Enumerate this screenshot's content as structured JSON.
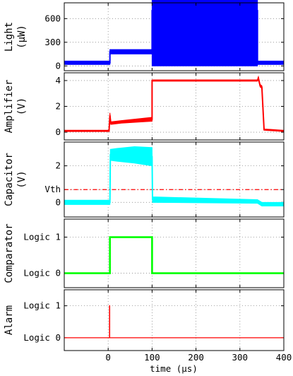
{
  "chart_data": {
    "type": "line",
    "x_range": [
      -100,
      400
    ],
    "x_ticks": [
      "0",
      "100",
      "200",
      "300",
      "400"
    ],
    "x_tick_values": [
      0,
      100,
      200,
      300,
      400
    ],
    "xlabel": "time (µs)",
    "grid": true,
    "panels": [
      {
        "name": "light",
        "ylabel_lines": [
          "Light",
          "(µW)"
        ],
        "ylim": [
          -60,
          800
        ],
        "y_ticks": [
          {
            "label": "600",
            "value": 600
          },
          {
            "label": "300",
            "value": 300
          },
          {
            "label": "0",
            "value": 0
          }
        ],
        "color": "#0000ff",
        "series": [
          {
            "x": [
              -100,
              4,
              4,
              100,
              100,
              340,
              340,
              400
            ],
            "y": [
              40,
              40,
              180,
              180,
              700,
              700,
              40,
              40
            ],
            "band": [
              22,
              22,
              28,
              28,
              700,
              700,
              22,
              22
            ]
          }
        ]
      },
      {
        "name": "amplifier",
        "ylabel_lines": [
          "Amplifier",
          "(V)"
        ],
        "ylim": [
          -0.6,
          4.6
        ],
        "y_ticks": [
          {
            "label": "4",
            "value": 4
          },
          {
            "label": "2",
            "value": 2
          },
          {
            "label": "0",
            "value": 0
          }
        ],
        "color": "#ff0000",
        "series": [
          {
            "x": [
              -100,
              2,
              4,
              6,
              30,
              100,
              100,
              340,
              342,
              346,
              350,
              355,
              400
            ],
            "y": [
              0.1,
              0.1,
              1.3,
              0.7,
              0.8,
              1.0,
              4.0,
              4.0,
              4.2,
              3.6,
              3.5,
              0.2,
              0.1
            ],
            "band": [
              0.05,
              0.05,
              0.2,
              0.1,
              0.1,
              0.15,
              0.05,
              0.05,
              0.1,
              0.1,
              0.1,
              0.05,
              0.05
            ]
          }
        ]
      },
      {
        "name": "capacitor",
        "ylabel_lines": [
          "Capacitor",
          "(V)"
        ],
        "ylim": [
          -0.8,
          3.3
        ],
        "y_ticks": [
          {
            "label": "2",
            "value": 2
          },
          {
            "label": "Vth",
            "value": 0.7
          },
          {
            "label": "0",
            "value": 0
          }
        ],
        "threshold": {
          "value": 0.7,
          "color": "#ff0000",
          "style": "dash-dot"
        },
        "color": "#00ffff",
        "series": [
          {
            "x": [
              -100,
              4,
              5,
              20,
              60,
              100,
              101,
              340,
              350,
              400
            ],
            "y": [
              0.0,
              0.0,
              2.6,
              2.6,
              2.6,
              2.5,
              0.15,
              0.05,
              -0.1,
              -0.1
            ],
            "band": [
              0.12,
              0.12,
              0.3,
              0.35,
              0.45,
              0.5,
              0.15,
              0.1,
              0.1,
              0.1
            ]
          }
        ]
      },
      {
        "name": "comparator",
        "ylabel_lines": [
          "Comparator"
        ],
        "ylim": [
          -0.4,
          1.5
        ],
        "y_ticks": [
          {
            "label": "Logic 1",
            "value": 1
          },
          {
            "label": "Logic 0",
            "value": 0
          }
        ],
        "color": "#00ff00",
        "series": [
          {
            "x": [
              -100,
              4,
              4,
              100,
              100,
              400
            ],
            "y": [
              0,
              0,
              1,
              1,
              0,
              0
            ]
          }
        ]
      },
      {
        "name": "alarm",
        "ylabel_lines": [
          "Alarm"
        ],
        "ylim": [
          -0.4,
          1.5
        ],
        "y_ticks": [
          {
            "label": "Logic 1",
            "value": 1
          },
          {
            "label": "Logic 0",
            "value": 0
          }
        ],
        "color": "#ff0000",
        "series": [
          {
            "x": [
              -100,
              3,
              3,
              3.6,
              3.6,
              400
            ],
            "y": [
              0,
              0,
              1,
              1,
              0,
              0
            ]
          }
        ]
      }
    ]
  }
}
